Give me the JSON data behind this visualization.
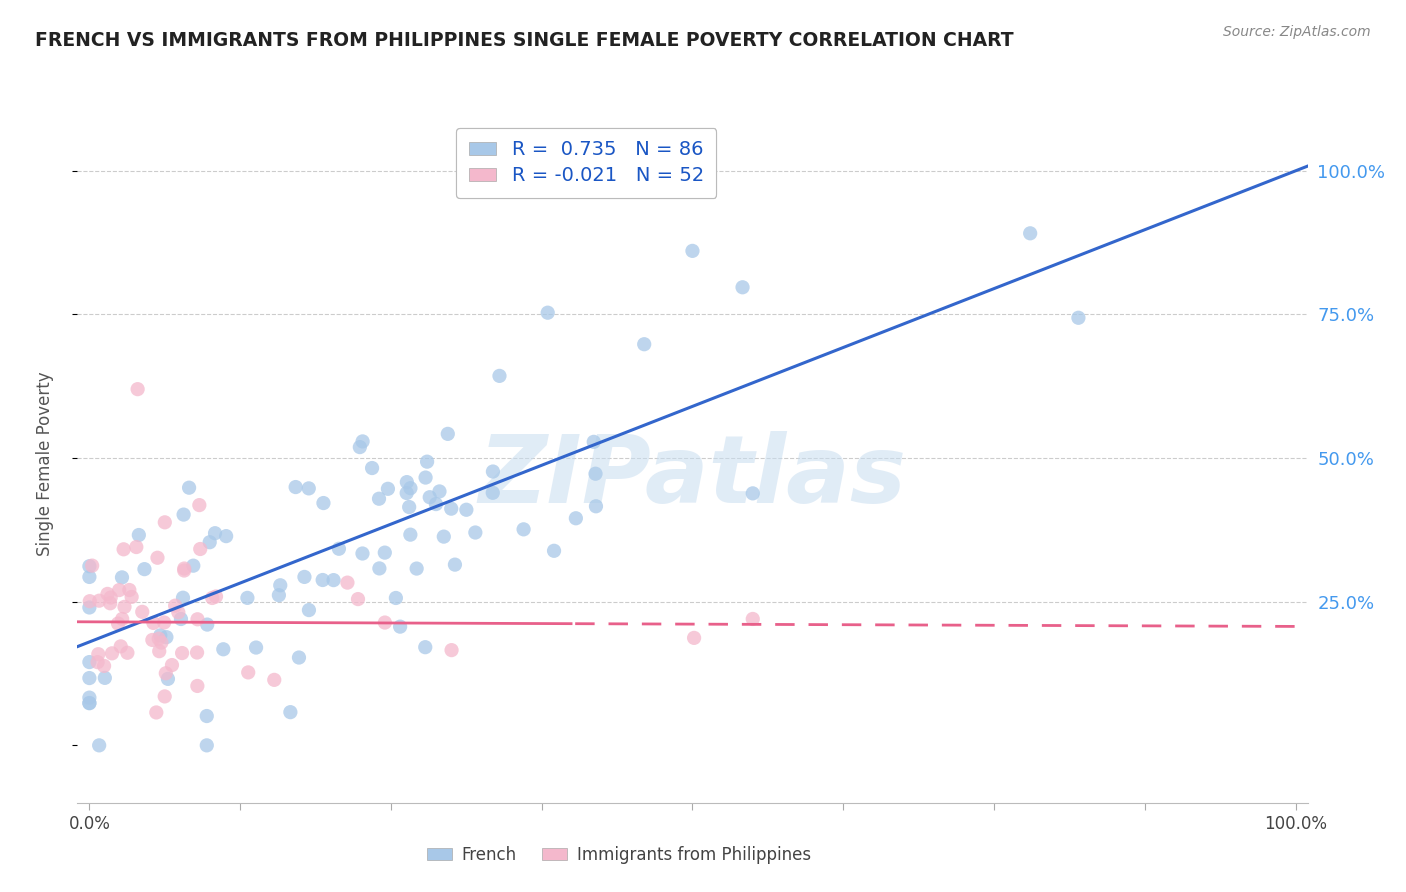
{
  "title": "FRENCH VS IMMIGRANTS FROM PHILIPPINES SINGLE FEMALE POVERTY CORRELATION CHART",
  "source": "Source: ZipAtlas.com",
  "ylabel": "Single Female Poverty",
  "french_R": 0.735,
  "french_N": 86,
  "phil_R": -0.021,
  "phil_N": 52,
  "french_color": "#a8c8e8",
  "phil_color": "#f4b8cc",
  "french_line_color": "#3366cc",
  "phil_line_color": "#e8608a",
  "watermark": "ZIPatlas",
  "legend_label_french": "French",
  "legend_label_phil": "Immigrants from Philippines",
  "background_color": "#ffffff",
  "grid_color": "#cccccc",
  "title_color": "#222222",
  "source_color": "#888888",
  "legend_value_color": "#1a56c4",
  "right_axis_color": "#4499ee",
  "french_line_intercept": 0.18,
  "french_line_slope": 0.82,
  "phil_line_intercept": 0.215,
  "phil_line_slope": -0.008
}
